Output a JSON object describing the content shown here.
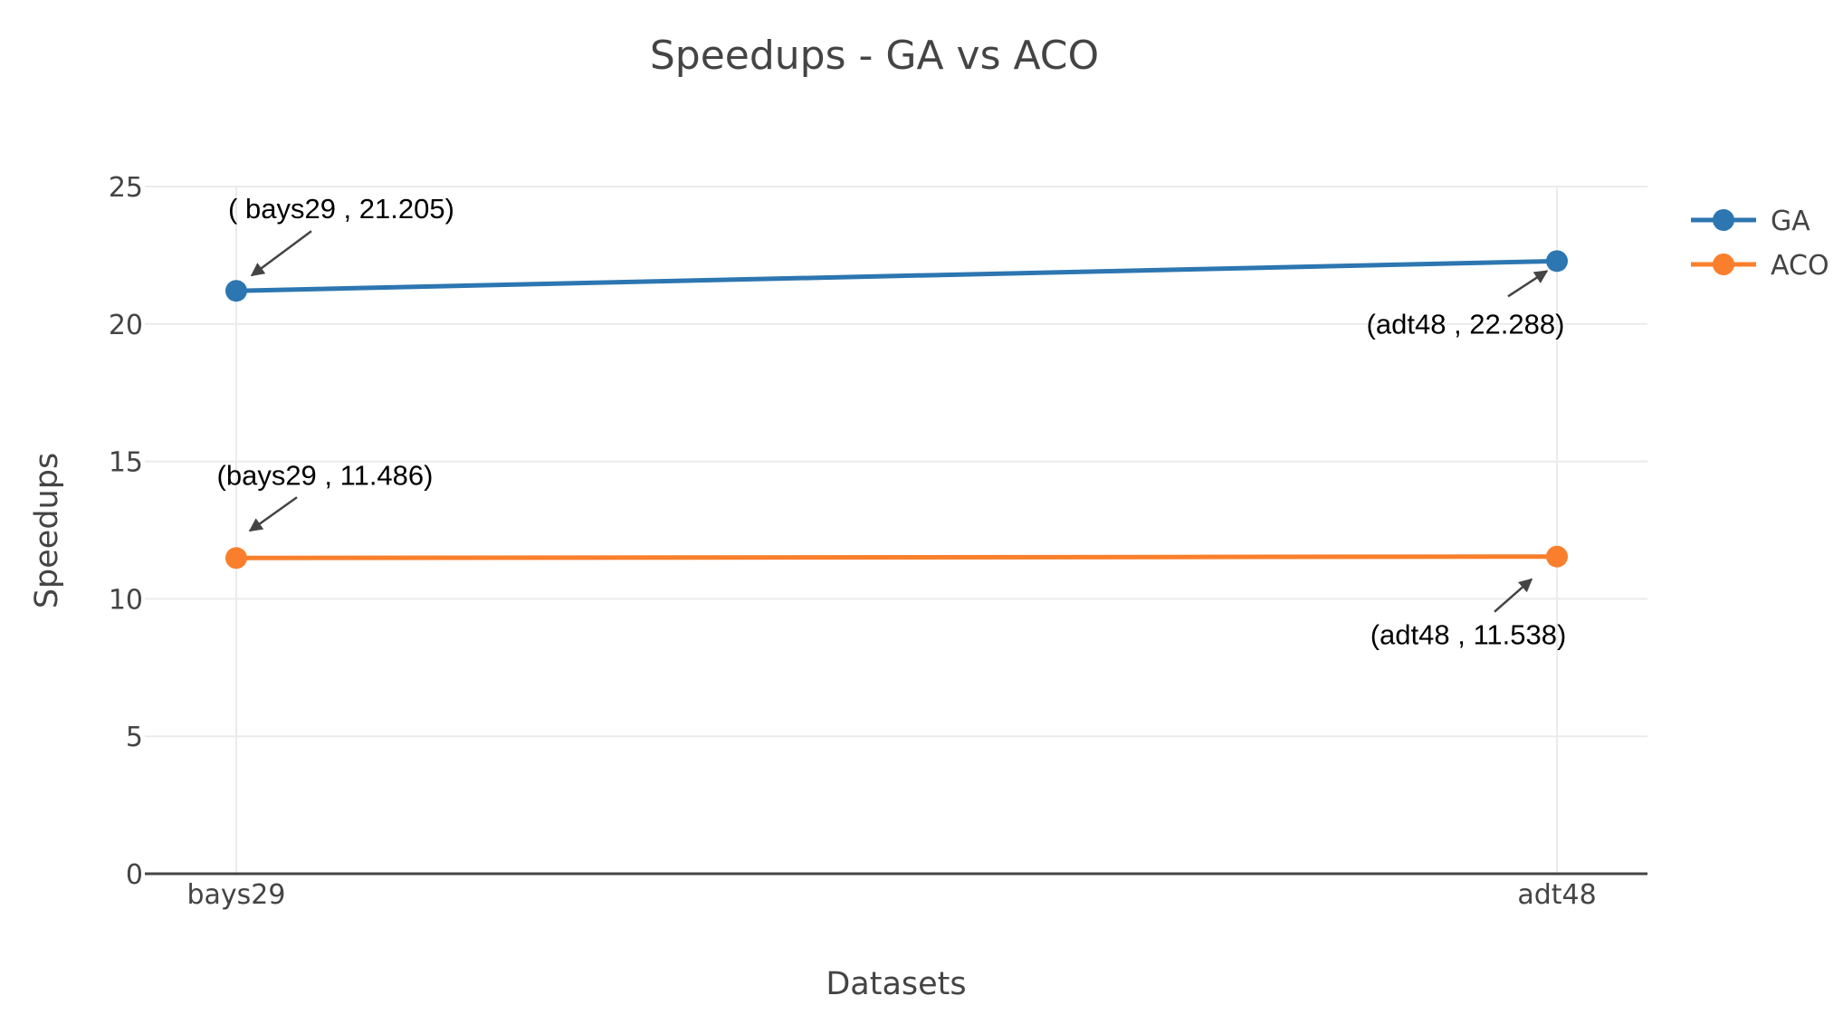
{
  "chart_data": {
    "type": "line",
    "title": "Speedups - GA vs ACO",
    "xlabel": "Datasets",
    "ylabel": "Speedups",
    "categories": [
      "bays29",
      "adt48"
    ],
    "ylim": [
      0,
      25
    ],
    "yticks": [
      0,
      5,
      10,
      15,
      20,
      25
    ],
    "grid": true,
    "legend_position": "top-right",
    "series": [
      {
        "name": "GA",
        "values": [
          21.205,
          22.288
        ],
        "color": "#2c76b1"
      },
      {
        "name": "ACO",
        "values": [
          11.486,
          11.538
        ],
        "color": "#fa7f2c"
      }
    ],
    "annotations": [
      {
        "text": "( bays29 , 21.205)",
        "series": 0,
        "point": 0
      },
      {
        "text": "(adt48 , 22.288)",
        "series": 0,
        "point": 1
      },
      {
        "text": "(bays29 , 11.486)",
        "series": 1,
        "point": 0
      },
      {
        "text": "(adt48 , 11.538)",
        "series": 1,
        "point": 1
      }
    ]
  }
}
